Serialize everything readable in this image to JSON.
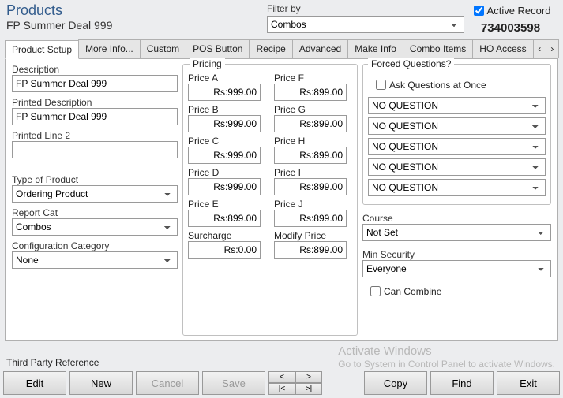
{
  "header": {
    "title": "Products",
    "subtitle": "FP Summer Deal 999",
    "filter_label": "Filter by",
    "filter_value": "Combos",
    "active_record_label": "Active Record",
    "active_record_checked": true,
    "record_number": "734003598"
  },
  "tabs": {
    "items": [
      "Product Setup",
      "More Info...",
      "Custom",
      "POS Button",
      "Recipe",
      "Advanced",
      "Make Info",
      "Combo Items",
      "HO Access"
    ],
    "active_index": 0,
    "scroll_left": "‹",
    "scroll_right": "›"
  },
  "left": {
    "description_label": "Description",
    "description": "FP Summer Deal 999",
    "printed_desc_label": "Printed Description",
    "printed_desc": "FP Summer Deal 999",
    "printed_line2_label": "Printed Line 2",
    "printed_line2": "",
    "type_label": "Type of Product",
    "type_value": "Ordering Product",
    "report_cat_label": "Report Cat",
    "report_cat_value": "Combos",
    "config_cat_label": "Configuration Category",
    "config_cat_value": "None"
  },
  "pricing": {
    "group_label": "Pricing",
    "items": [
      {
        "label": "Price A",
        "value": "Rs:999.00"
      },
      {
        "label": "Price F",
        "value": "Rs:899.00"
      },
      {
        "label": "Price B",
        "value": "Rs:999.00"
      },
      {
        "label": "Price G",
        "value": "Rs:899.00"
      },
      {
        "label": "Price C",
        "value": "Rs:999.00"
      },
      {
        "label": "Price H",
        "value": "Rs:899.00"
      },
      {
        "label": "Price D",
        "value": "Rs:999.00"
      },
      {
        "label": "Price I",
        "value": "Rs:899.00"
      },
      {
        "label": "Price E",
        "value": "Rs:899.00"
      },
      {
        "label": "Price J",
        "value": "Rs:899.00"
      },
      {
        "label": "Surcharge",
        "value": "Rs:0.00"
      },
      {
        "label": "Modify Price",
        "value": "Rs:899.00"
      }
    ]
  },
  "forced": {
    "group_label": "Forced Questions?",
    "ask_once_label": "Ask Questions at Once",
    "ask_once_checked": false,
    "questions": [
      "NO QUESTION",
      "NO QUESTION",
      "NO QUESTION",
      "NO QUESTION",
      "NO QUESTION"
    ],
    "course_label": "Course",
    "course_value": "Not Set",
    "min_sec_label": "Min Security",
    "min_sec_value": "Everyone",
    "can_combine_label": "Can Combine",
    "can_combine_checked": false
  },
  "footer": {
    "tpr_label": "Third Party Reference",
    "tpr_value": "",
    "watermark_l1": "Activate Windows",
    "watermark_l2": "Go to System in Control Panel to activate Windows.",
    "buttons": {
      "edit": "Edit",
      "new": "New",
      "cancel": "Cancel",
      "save": "Save",
      "copy": "Copy",
      "find": "Find",
      "exit": "Exit"
    },
    "nav": {
      "prev": "<",
      "next": ">",
      "first": "|<",
      "last": ">|"
    }
  }
}
